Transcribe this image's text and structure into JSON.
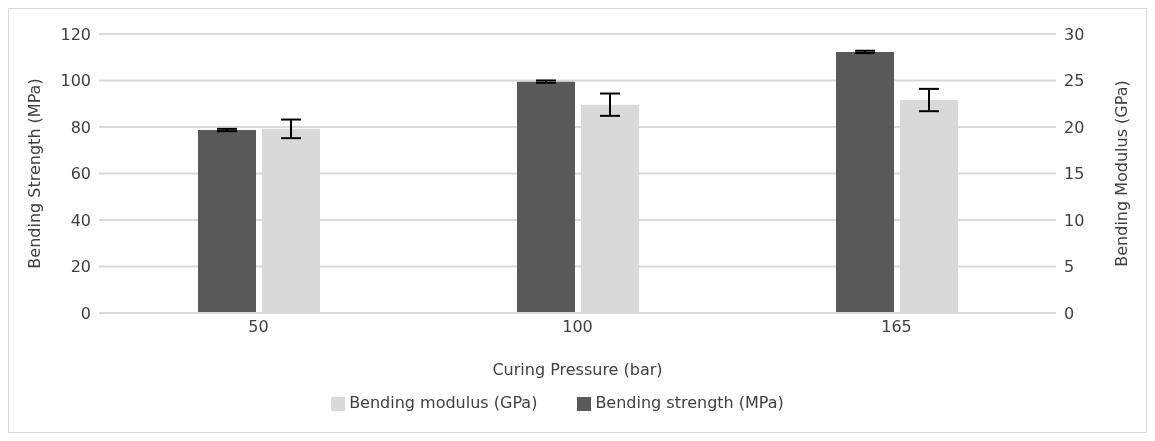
{
  "chart_data": {
    "type": "bar",
    "xlabel": "Curing Pressure (bar)",
    "ylabel": "Bending Strength (MPa)",
    "y2label": "Bending Modulus (GPa)",
    "categories": [
      "50",
      "100",
      "165"
    ],
    "series": [
      {
        "name": "Bending strength (MPa)",
        "color": "#595959",
        "values": [
          78.7,
          99.5,
          112.3
        ],
        "errors": [
          0.5,
          0.5,
          0.5
        ]
      },
      {
        "name": "Bending modulus (GPa)",
        "color": "#d9d9d9",
        "values": [
          19.8,
          22.4,
          22.9
        ],
        "errors": [
          1.0,
          1.2,
          1.2
        ],
        "axis": "y2"
      }
    ],
    "ylim": [
      0,
      120
    ],
    "yticks": [
      0,
      20,
      40,
      60,
      80,
      100,
      120
    ],
    "y2lim": [
      0,
      30
    ],
    "y2ticks": [
      0,
      5,
      10,
      15,
      20,
      25,
      30
    ],
    "grid": "y",
    "legend": "bottom"
  }
}
